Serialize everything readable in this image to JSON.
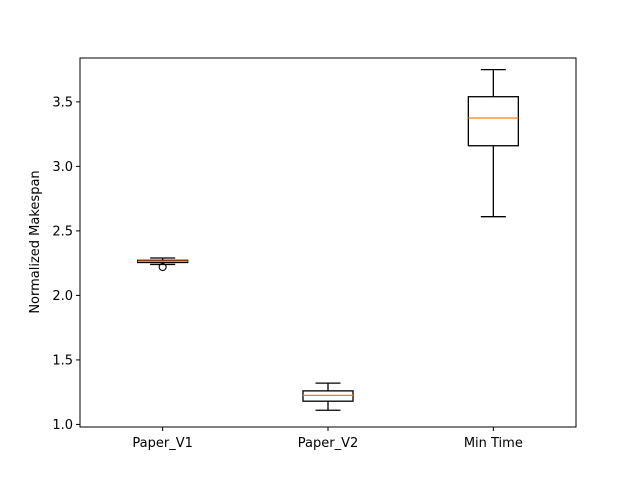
{
  "chart_data": {
    "type": "box",
    "title": "",
    "xlabel": "",
    "ylabel": "Normalized Makespan",
    "ylim": [
      0.98,
      3.84
    ],
    "yticks": [
      1.0,
      1.5,
      2.0,
      2.5,
      3.0,
      3.5
    ],
    "ytick_labels": [
      "1.0",
      "1.5",
      "2.0",
      "2.5",
      "3.0",
      "3.5"
    ],
    "categories": [
      "Paper_V1",
      "Paper_V2",
      "Min Time"
    ],
    "boxes": [
      {
        "category": "Paper_V1",
        "whislo": 2.24,
        "q1": 2.255,
        "med": 2.265,
        "q3": 2.272,
        "whishi": 2.29,
        "fliers": [
          2.22
        ]
      },
      {
        "category": "Paper_V2",
        "whislo": 1.11,
        "q1": 1.18,
        "med": 1.225,
        "q3": 1.26,
        "whishi": 1.32,
        "fliers": []
      },
      {
        "category": "Min Time",
        "whislo": 2.61,
        "q1": 3.16,
        "med": 3.375,
        "q3": 3.54,
        "whishi": 3.75,
        "fliers": []
      }
    ],
    "grid": false,
    "colors": {
      "box": "#000000",
      "median": "#ff7f0e",
      "frame": "#000000"
    }
  }
}
